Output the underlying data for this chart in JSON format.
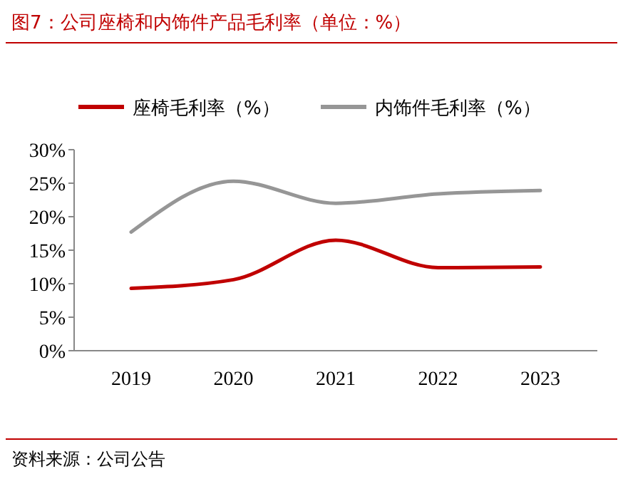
{
  "chart_data": {
    "type": "line",
    "title": "图7：公司座椅和内饰件产品毛利率（单位：%）",
    "categories": [
      "2019",
      "2020",
      "2021",
      "2022",
      "2023"
    ],
    "series": [
      {
        "name": "座椅毛利率（%）",
        "color": "#c00000",
        "values": [
          9.3,
          10.6,
          16.5,
          12.4,
          12.5
        ]
      },
      {
        "name": "内饰件毛利率（%）",
        "color": "#969696",
        "values": [
          17.7,
          25.3,
          22.0,
          23.4,
          23.9
        ]
      }
    ],
    "ylim": [
      0,
      30
    ],
    "yticks": [
      {
        "value": 0,
        "label": "0%"
      },
      {
        "value": 5,
        "label": "5%"
      },
      {
        "value": 10,
        "label": "10%"
      },
      {
        "value": 15,
        "label": "15%"
      },
      {
        "value": 20,
        "label": "20%"
      },
      {
        "value": 25,
        "label": "25%"
      },
      {
        "value": 30,
        "label": "30%"
      }
    ],
    "legend": "top",
    "grid": false,
    "marker": "none",
    "line_style": "solid",
    "annotations": [
      "资料来源：公司公告"
    ]
  }
}
